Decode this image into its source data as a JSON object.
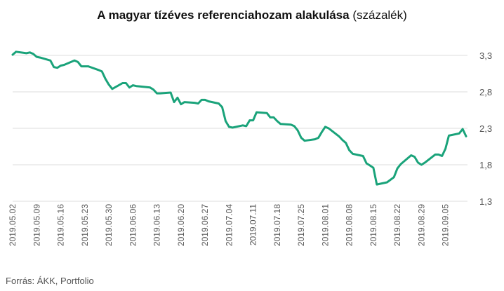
{
  "title_main": "A magyar tízéves referenciahozam alakulása",
  "title_unit": "(százalék)",
  "source": "Forrás: ÁKK, Portfolio",
  "colors": {
    "line": "#1aa37a",
    "grid": "#dddddd",
    "tick": "#555555"
  },
  "chart_data": {
    "type": "line",
    "title": "A magyar tízéves referenciahozam alakulása (százalék)",
    "ylim": [
      1.3,
      3.3
    ],
    "yticks": [
      "3,3",
      "2,8",
      "2,3",
      "1,8",
      "1,3"
    ],
    "ytick_values": [
      3.3,
      2.8,
      2.3,
      1.8,
      1.3
    ],
    "xticks": [
      "2019.05.02",
      "2019.05.09",
      "2019.05.16",
      "2019.05.23",
      "2019.05.30",
      "2019.06.06",
      "2019.06.13",
      "2019.06.20",
      "2019.06.27",
      "2019.07.04",
      "2019.07.11",
      "2019.07.18",
      "2019.07.25",
      "2019.08.01",
      "2019.08.08",
      "2019.08.15",
      "2019.08.22",
      "2019.08.29",
      "2019.09.05"
    ],
    "grid": true,
    "series": [
      {
        "x": [
          "2019.05.02",
          "2019.05.03",
          "2019.05.06",
          "2019.05.07",
          "2019.05.08",
          "2019.05.09",
          "2019.05.10",
          "2019.05.13",
          "2019.05.14",
          "2019.05.15",
          "2019.05.16",
          "2019.05.17",
          "2019.05.20",
          "2019.05.21",
          "2019.05.22",
          "2019.05.23",
          "2019.05.24",
          "2019.05.27",
          "2019.05.28",
          "2019.05.29",
          "2019.05.30",
          "2019.05.31",
          "2019.06.03",
          "2019.06.04",
          "2019.06.05",
          "2019.06.06",
          "2019.06.07",
          "2019.06.11",
          "2019.06.12",
          "2019.06.13",
          "2019.06.14",
          "2019.06.17",
          "2019.06.18",
          "2019.06.19",
          "2019.06.20",
          "2019.06.21",
          "2019.06.24",
          "2019.06.25",
          "2019.06.26",
          "2019.06.27",
          "2019.06.28",
          "2019.07.01",
          "2019.07.02",
          "2019.07.03",
          "2019.07.04",
          "2019.07.05",
          "2019.07.08",
          "2019.07.09",
          "2019.07.10",
          "2019.07.11",
          "2019.07.12",
          "2019.07.15",
          "2019.07.16",
          "2019.07.17",
          "2019.07.18",
          "2019.07.19",
          "2019.07.22",
          "2019.07.23",
          "2019.07.24",
          "2019.07.25",
          "2019.07.26",
          "2019.07.29",
          "2019.07.30",
          "2019.07.31",
          "2019.08.01",
          "2019.08.02",
          "2019.08.05",
          "2019.08.06",
          "2019.08.07",
          "2019.08.08",
          "2019.08.09",
          "2019.08.12",
          "2019.08.13",
          "2019.08.14",
          "2019.08.15",
          "2019.08.16",
          "2019.08.19",
          "2019.08.21",
          "2019.08.22",
          "2019.08.23",
          "2019.08.26",
          "2019.08.27",
          "2019.08.28",
          "2019.08.29",
          "2019.08.30",
          "2019.09.02",
          "2019.09.03",
          "2019.09.04",
          "2019.09.05",
          "2019.09.06",
          "2019.09.09",
          "2019.09.10",
          "2019.09.11"
        ],
        "values": [
          3.31,
          3.35,
          3.33,
          3.34,
          3.32,
          3.28,
          3.27,
          3.23,
          3.14,
          3.13,
          3.16,
          3.17,
          3.23,
          3.21,
          3.15,
          3.15,
          3.15,
          3.1,
          3.08,
          2.98,
          2.9,
          2.84,
          2.92,
          2.92,
          2.86,
          2.89,
          2.88,
          2.86,
          2.83,
          2.78,
          2.78,
          2.79,
          2.66,
          2.72,
          2.63,
          2.66,
          2.65,
          2.64,
          2.69,
          2.69,
          2.67,
          2.64,
          2.59,
          2.4,
          2.32,
          2.31,
          2.34,
          2.33,
          2.41,
          2.41,
          2.52,
          2.51,
          2.45,
          2.45,
          2.4,
          2.36,
          2.35,
          2.33,
          2.27,
          2.17,
          2.13,
          2.15,
          2.17,
          2.25,
          2.32,
          2.3,
          2.19,
          2.14,
          2.1,
          2.0,
          1.95,
          1.92,
          1.82,
          1.79,
          1.76,
          1.53,
          1.56,
          1.63,
          1.75,
          1.81,
          1.93,
          1.91,
          1.83,
          1.8,
          1.83,
          1.94,
          1.94,
          1.92,
          2.02,
          2.2,
          2.23,
          2.29,
          2.19
        ]
      }
    ]
  }
}
